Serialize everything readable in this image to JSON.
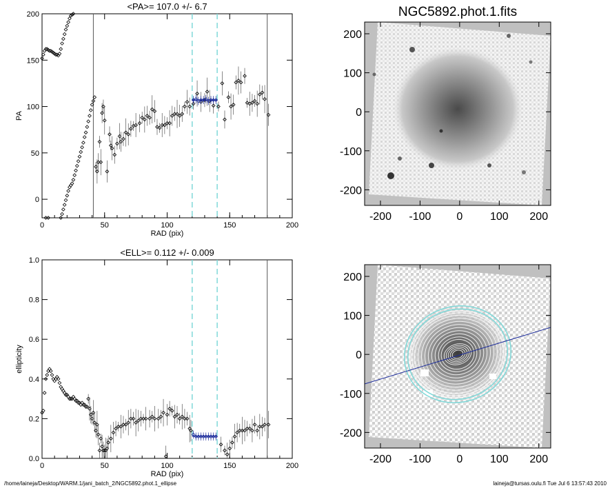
{
  "footer": {
    "left": "/home/laineja/Desktop/WARM.1/jani_batch_2/NGC5892.phot.1_ellipse",
    "right": "laineja@tursas.oulu.fi  Tue Jul  6 13:57:43 2010"
  },
  "colors": {
    "cyan_marker": "#7fd8d8",
    "blue_fit": "#1a2a9a",
    "axis": "#000000",
    "image_bg": "#c0c0c0"
  },
  "chart_data": [
    {
      "type": "scatter",
      "title": "<PA>= 107.0 +/-   6.7",
      "xlabel": "RAD (pix)",
      "ylabel": "PA",
      "xlim": [
        0,
        200
      ],
      "ylim": [
        -20,
        200
      ],
      "xticks": [
        "0",
        "50",
        "100",
        "150",
        "200"
      ],
      "yticks": [
        "0",
        "50",
        "100",
        "150",
        "200"
      ],
      "vlines_cyan": [
        120,
        140
      ],
      "vlines_black": [
        41,
        180
      ],
      "fit_mean": 107.0,
      "fit_range": [
        120,
        140
      ],
      "series_dense": [
        [
          0,
          152
        ],
        [
          1,
          156
        ],
        [
          2,
          160
        ],
        [
          3,
          162
        ],
        [
          4,
          162
        ],
        [
          5,
          161
        ],
        [
          6,
          160
        ],
        [
          7,
          160
        ],
        [
          8,
          159
        ],
        [
          9,
          158
        ],
        [
          10,
          157
        ],
        [
          11,
          156
        ],
        [
          12,
          156
        ],
        [
          13,
          155
        ],
        [
          14,
          157
        ],
        [
          15,
          162
        ],
        [
          16,
          168
        ],
        [
          17,
          173
        ],
        [
          18,
          178
        ],
        [
          19,
          183
        ],
        [
          20,
          187
        ],
        [
          21,
          191
        ],
        [
          22,
          195
        ],
        [
          23,
          198
        ],
        [
          24,
          199
        ],
        [
          25,
          200
        ]
      ],
      "series_dense2": [
        [
          3,
          -20
        ],
        [
          5,
          -20
        ],
        [
          15,
          -20
        ],
        [
          16,
          -16
        ],
        [
          17,
          -11
        ],
        [
          18,
          -6
        ],
        [
          19,
          -1
        ],
        [
          20,
          4
        ],
        [
          21,
          9
        ],
        [
          22,
          13
        ],
        [
          23,
          15
        ],
        [
          24,
          17
        ],
        [
          25,
          21
        ],
        [
          26,
          26
        ],
        [
          27,
          31
        ],
        [
          28,
          36
        ],
        [
          29,
          41
        ],
        [
          30,
          46
        ],
        [
          31,
          51
        ],
        [
          32,
          56
        ],
        [
          33,
          61
        ],
        [
          34,
          67
        ],
        [
          35,
          72
        ],
        [
          36,
          78
        ],
        [
          37,
          84
        ],
        [
          38,
          90
        ],
        [
          39,
          96
        ],
        [
          40,
          102
        ],
        [
          41,
          106
        ],
        [
          42,
          110
        ]
      ],
      "series_points": [
        [
          43,
          35
        ],
        [
          44,
          30
        ],
        [
          45,
          40
        ],
        [
          46,
          62
        ],
        [
          47,
          40
        ],
        [
          48,
          93
        ],
        [
          49,
          100
        ],
        [
          50,
          85
        ],
        [
          52,
          30
        ],
        [
          54,
          70
        ],
        [
          55,
          58
        ],
        [
          56,
          55
        ],
        [
          58,
          48
        ],
        [
          60,
          60
        ],
        [
          62,
          68
        ],
        [
          63,
          62
        ],
        [
          65,
          65
        ],
        [
          67,
          72
        ],
        [
          69,
          70
        ],
        [
          71,
          76
        ],
        [
          73,
          79
        ],
        [
          75,
          80
        ],
        [
          78,
          82
        ],
        [
          80,
          88
        ],
        [
          82,
          86
        ],
        [
          84,
          90
        ],
        [
          86,
          88
        ],
        [
          88,
          97
        ],
        [
          90,
          95
        ],
        [
          92,
          78
        ],
        [
          94,
          77
        ],
        [
          96,
          80
        ],
        [
          98,
          80
        ],
        [
          100,
          82
        ],
        [
          102,
          82
        ],
        [
          104,
          90
        ],
        [
          106,
          92
        ],
        [
          108,
          92
        ],
        [
          110,
          90
        ],
        [
          112,
          92
        ],
        [
          114,
          100
        ],
        [
          116,
          105
        ],
        [
          118,
          100
        ],
        [
          121,
          103
        ],
        [
          124,
          114
        ],
        [
          127,
          105
        ],
        [
          130,
          107
        ],
        [
          132,
          116
        ],
        [
          134,
          106
        ],
        [
          137,
          101
        ],
        [
          141,
          100
        ],
        [
          144,
          125
        ],
        [
          146,
          86
        ],
        [
          149,
          110
        ],
        [
          151,
          100
        ],
        [
          153,
          102
        ],
        [
          155,
          126
        ],
        [
          157,
          128
        ],
        [
          159,
          126
        ],
        [
          162,
          133
        ],
        [
          164,
          104
        ],
        [
          166,
          103
        ],
        [
          168,
          104
        ],
        [
          170,
          106
        ],
        [
          172,
          103
        ],
        [
          174,
          113
        ],
        [
          176,
          115
        ],
        [
          178,
          108
        ],
        [
          181,
          91
        ]
      ],
      "series_fit_points": [
        [
          121,
          107
        ],
        [
          123,
          108
        ],
        [
          125,
          106
        ],
        [
          127,
          107
        ],
        [
          129,
          107
        ],
        [
          131,
          108
        ],
        [
          133,
          106
        ],
        [
          135,
          107
        ],
        [
          137,
          107
        ],
        [
          139,
          107
        ]
      ]
    },
    {
      "type": "scatter",
      "title": "<ELL>= 0.112 +/-  0.009",
      "xlabel": "RAD (pix)",
      "ylabel": "ellipticity",
      "xlim": [
        0,
        200
      ],
      "ylim": [
        0,
        1
      ],
      "xticks": [
        "0",
        "50",
        "100",
        "150",
        "200"
      ],
      "yticks": [
        "0.0",
        "0.2",
        "0.4",
        "0.6",
        "0.8",
        "1.0"
      ],
      "vlines_cyan": [
        120,
        140
      ],
      "vlines_black": [
        180
      ],
      "fit_mean": 0.112,
      "fit_range": [
        120,
        140
      ],
      "series_dense": [
        [
          0,
          0.23
        ],
        [
          1,
          0.24
        ],
        [
          2,
          0.33
        ],
        [
          3,
          0.4
        ],
        [
          4,
          0.42
        ],
        [
          5,
          0.44
        ],
        [
          6,
          0.45
        ],
        [
          7,
          0.44
        ],
        [
          8,
          0.42
        ],
        [
          9,
          0.4
        ],
        [
          10,
          0.39
        ],
        [
          11,
          0.4
        ],
        [
          12,
          0.41
        ],
        [
          13,
          0.4
        ],
        [
          14,
          0.38
        ],
        [
          15,
          0.36
        ],
        [
          16,
          0.35
        ],
        [
          17,
          0.34
        ],
        [
          18,
          0.33
        ],
        [
          19,
          0.32
        ],
        [
          20,
          0.32
        ],
        [
          21,
          0.31
        ],
        [
          22,
          0.3
        ],
        [
          23,
          0.3
        ],
        [
          24,
          0.3
        ],
        [
          25,
          0.31
        ],
        [
          26,
          0.3
        ],
        [
          27,
          0.29
        ],
        [
          28,
          0.29
        ],
        [
          29,
          0.28
        ],
        [
          30,
          0.28
        ],
        [
          31,
          0.27
        ],
        [
          32,
          0.28
        ],
        [
          33,
          0.27
        ],
        [
          34,
          0.27
        ],
        [
          35,
          0.26
        ],
        [
          36,
          0.26
        ]
      ],
      "series_points": [
        [
          37,
          0.3
        ],
        [
          38,
          0.25
        ],
        [
          39,
          0.22
        ],
        [
          40,
          0.2
        ],
        [
          41,
          0.23
        ],
        [
          42,
          0.18
        ],
        [
          43,
          0.14
        ],
        [
          44,
          0.17
        ],
        [
          45,
          0.12
        ],
        [
          46,
          0.04
        ],
        [
          47,
          0.1
        ],
        [
          48,
          0.06
        ],
        [
          49,
          0.04
        ],
        [
          50,
          0.04
        ],
        [
          51,
          0.04
        ],
        [
          52,
          0.05
        ],
        [
          53,
          0.08
        ],
        [
          55,
          0.1
        ],
        [
          57,
          0.13
        ],
        [
          59,
          0.15
        ],
        [
          61,
          0.16
        ],
        [
          63,
          0.16
        ],
        [
          65,
          0.17
        ],
        [
          67,
          0.17
        ],
        [
          69,
          0.18
        ],
        [
          71,
          0.2
        ],
        [
          73,
          0.2
        ],
        [
          75,
          0.18
        ],
        [
          77,
          0.19
        ],
        [
          79,
          0.2
        ],
        [
          81,
          0.2
        ],
        [
          83,
          0.2
        ],
        [
          86,
          0.2
        ],
        [
          88,
          0.21
        ],
        [
          90,
          0.2
        ],
        [
          93,
          0.2
        ],
        [
          95,
          0.21
        ],
        [
          97,
          0.23
        ],
        [
          100,
          0.22
        ],
        [
          102,
          0.25
        ],
        [
          104,
          0.24
        ],
        [
          106,
          0.21
        ],
        [
          108,
          0.22
        ],
        [
          110,
          0.2
        ],
        [
          112,
          0.21
        ],
        [
          114,
          0.2
        ],
        [
          116,
          0.2
        ],
        [
          118,
          0.15
        ],
        [
          119,
          0.14
        ],
        [
          143,
          0.07
        ],
        [
          146,
          0.04
        ],
        [
          148,
          0.02
        ],
        [
          150,
          0.05
        ],
        [
          152,
          0.08
        ],
        [
          154,
          0.11
        ],
        [
          156,
          0.13
        ],
        [
          158,
          0.14
        ],
        [
          160,
          0.14
        ],
        [
          162,
          0.14
        ],
        [
          164,
          0.15
        ],
        [
          166,
          0.15
        ],
        [
          168,
          0.14
        ],
        [
          170,
          0.17
        ],
        [
          172,
          0.14
        ],
        [
          174,
          0.16
        ],
        [
          176,
          0.16
        ],
        [
          178,
          0.17
        ],
        [
          181,
          0.17
        ],
        [
          99,
          0.01
        ]
      ],
      "series_fit_points": [
        [
          121,
          0.12
        ],
        [
          123,
          0.11
        ],
        [
          125,
          0.11
        ],
        [
          127,
          0.11
        ],
        [
          129,
          0.11
        ],
        [
          131,
          0.11
        ],
        [
          133,
          0.11
        ],
        [
          135,
          0.11
        ],
        [
          137,
          0.11
        ],
        [
          139,
          0.11
        ]
      ]
    },
    {
      "type": "heatmap",
      "title": "NGC5892.phot.1.fits",
      "xlabel": "",
      "ylabel": "",
      "xlim": [
        -240,
        230
      ],
      "ylim": [
        -240,
        230
      ],
      "xticks": [
        "-200",
        "-100",
        "0",
        "100",
        "200"
      ],
      "yticks": [
        "-200",
        "-100",
        "0",
        "100",
        "200"
      ]
    },
    {
      "type": "heatmap",
      "title": "",
      "xlabel": "",
      "ylabel": "",
      "xlim": [
        -240,
        230
      ],
      "ylim": [
        -240,
        230
      ],
      "xticks": [
        "-200",
        "-100",
        "0",
        "100",
        "200"
      ],
      "yticks": [
        "-200",
        "-100",
        "0",
        "100",
        "200"
      ],
      "pa_line": 107.0
    }
  ]
}
